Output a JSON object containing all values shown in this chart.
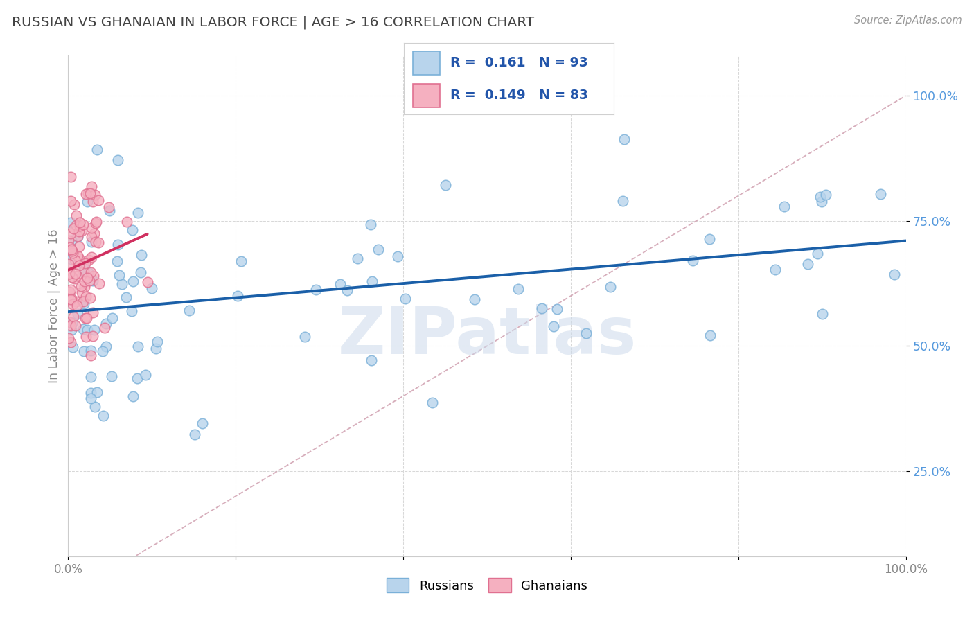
{
  "title": "RUSSIAN VS GHANAIAN IN LABOR FORCE | AGE > 16 CORRELATION CHART",
  "source_text": "Source: ZipAtlas.com",
  "ylabel": "In Labor Force | Age > 16",
  "watermark": "ZIPatlas",
  "russian_R": 0.161,
  "russian_N": 93,
  "ghanaian_R": 0.149,
  "ghanaian_N": 83,
  "russian_fill": "#b8d4ec",
  "russian_edge": "#7ab0d8",
  "ghanaian_fill": "#f5b0c0",
  "ghanaian_edge": "#e07090",
  "trend_russian_color": "#1a5fa8",
  "trend_ghanaian_color": "#d03060",
  "ref_line_color": "#d0a0b0",
  "grid_color": "#d8d8d8",
  "title_color": "#444444",
  "ylabel_color": "#888888",
  "tick_color_right": "#5599dd",
  "tick_color_bottom": "#888888",
  "legend_R_color": "#2255aa",
  "background_color": "#ffffff",
  "xlim": [
    0.0,
    1.0
  ],
  "ylim": [
    0.08,
    1.08
  ],
  "ytick_values": [
    0.25,
    0.5,
    0.75,
    1.0
  ],
  "ytick_labels": [
    "25.0%",
    "50.0%",
    "75.0%",
    "100.0%"
  ],
  "xtick_values": [
    0.0,
    0.2,
    0.4,
    0.6,
    0.8,
    1.0
  ],
  "xtick_labels": [
    "0.0%",
    "",
    "",
    "",
    "",
    "100.0%"
  ]
}
